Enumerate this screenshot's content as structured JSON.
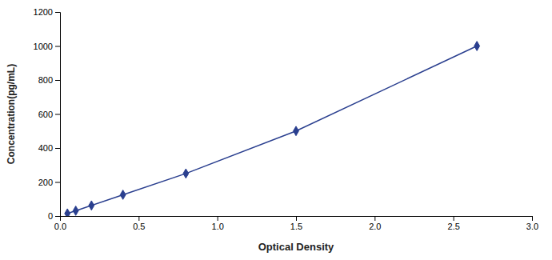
{
  "chart_data": {
    "type": "line",
    "x": [
      0.047,
      0.1,
      0.2,
      0.4,
      0.8,
      1.5,
      2.65
    ],
    "values": [
      15,
      31,
      62,
      125,
      250,
      500,
      1000
    ],
    "color": "#2a3f8f",
    "marker": "diamond",
    "xlabel": "Optical Density",
    "ylabel": "Concentration(pg/mL)",
    "xlim": [
      0,
      3
    ],
    "ylim": [
      0,
      1200
    ],
    "xticks": [
      {
        "value": 0,
        "label": "0.0"
      },
      0.5,
      {
        "value": 1,
        "label": "1.0"
      },
      1.5,
      {
        "value": 2,
        "label": "2.0"
      },
      2.5,
      {
        "value": 3,
        "label": "3.0"
      }
    ],
    "yticks": [
      0,
      200,
      400,
      600,
      800,
      1000,
      1200
    ],
    "grid": false
  }
}
